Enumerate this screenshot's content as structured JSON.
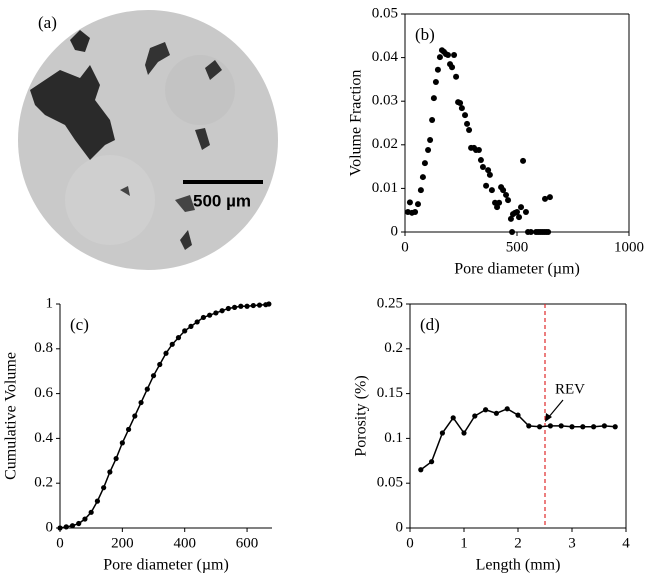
{
  "image": {
    "label": "(a)",
    "scale_bar": "500 µm"
  },
  "chart_data": [
    {
      "type": "scatter",
      "label": "(b)",
      "xlabel": "Pore diameter (µm)",
      "ylabel": "Volume Fraction",
      "color": "#000000",
      "box": true,
      "xlim": [
        0,
        1000
      ],
      "xticks": [
        0,
        500,
        1000
      ],
      "ylim": [
        0,
        0.05
      ],
      "yticks": [
        0,
        0.01,
        0.02,
        0.03,
        0.04,
        0.05
      ],
      "x": [
        13,
        22,
        31,
        45,
        58,
        71,
        80,
        89,
        103,
        112,
        121,
        129,
        138,
        147,
        156,
        165,
        174,
        183,
        192,
        201,
        210,
        219,
        228,
        237,
        246,
        254,
        268,
        277,
        286,
        295,
        308,
        317,
        330,
        339,
        348,
        362,
        371,
        379,
        388,
        402,
        411,
        420,
        429,
        438,
        451,
        460,
        473,
        478,
        482,
        491,
        500,
        509,
        518,
        527,
        540,
        549,
        562,
        585,
        594,
        603,
        612,
        621,
        625,
        630,
        639,
        647
      ],
      "values": [
        0.0046,
        0.0068,
        0.0044,
        0.0046,
        0.0064,
        0.0096,
        0.0126,
        0.0158,
        0.0188,
        0.0211,
        0.0257,
        0.0307,
        0.0344,
        0.0372,
        0.0401,
        0.0417,
        0.0413,
        0.0408,
        0.0406,
        0.0385,
        0.0378,
        0.0406,
        0.0356,
        0.0298,
        0.0296,
        0.0284,
        0.0268,
        0.0248,
        0.0234,
        0.0193,
        0.0193,
        0.0188,
        0.0188,
        0.0165,
        0.0149,
        0.0106,
        0.0142,
        0.0131,
        0.0096,
        0.0067,
        0.0057,
        0.0067,
        0.0103,
        0.0096,
        0.0085,
        0.0073,
        0.003,
        0,
        0.0041,
        0.0044,
        0.0046,
        0.0034,
        0.0057,
        0.0163,
        0.0046,
        0,
        0,
        0,
        0,
        0,
        0,
        0,
        0.0076,
        0,
        0,
        0.008
      ]
    },
    {
      "type": "line",
      "label": "(c)",
      "xlabel": "Pore diameter (µm)",
      "ylabel": "Cumulative Volume",
      "color": "#000000",
      "box": false,
      "xlim": [
        0,
        680
      ],
      "xticks": [
        0,
        200,
        400,
        600
      ],
      "ylim": [
        0,
        1
      ],
      "yticks": [
        0,
        0.2,
        0.4,
        0.6,
        0.8,
        1
      ],
      "x": [
        0,
        20,
        40,
        60,
        80,
        100,
        120,
        140,
        160,
        180,
        200,
        220,
        240,
        260,
        280,
        300,
        320,
        340,
        360,
        380,
        400,
        420,
        440,
        460,
        480,
        500,
        520,
        540,
        560,
        580,
        600,
        620,
        640,
        660,
        670
      ],
      "values": [
        0,
        0.005,
        0.01,
        0.02,
        0.04,
        0.07,
        0.12,
        0.18,
        0.25,
        0.31,
        0.38,
        0.44,
        0.5,
        0.56,
        0.62,
        0.68,
        0.73,
        0.78,
        0.82,
        0.85,
        0.88,
        0.9,
        0.92,
        0.94,
        0.95,
        0.96,
        0.97,
        0.98,
        0.985,
        0.99,
        0.99,
        0.993,
        0.995,
        0.997,
        1
      ]
    },
    {
      "type": "line",
      "label": "(d)",
      "xlabel": "Length (mm)",
      "ylabel": "Porosity (%)",
      "color": "#000000",
      "box": true,
      "xlim": [
        0,
        4
      ],
      "xticks": [
        0,
        1,
        2,
        3,
        4
      ],
      "ylim": [
        0,
        0.25
      ],
      "yticks": [
        0,
        0.05,
        0.1,
        0.15,
        0.2,
        0.25
      ],
      "x": [
        0.2,
        0.4,
        0.6,
        0.8,
        1.0,
        1.2,
        1.4,
        1.6,
        1.8,
        2.0,
        2.2,
        2.4,
        2.6,
        2.8,
        3.0,
        3.2,
        3.4,
        3.6,
        3.8
      ],
      "values": [
        0.065,
        0.074,
        0.106,
        0.123,
        0.106,
        0.125,
        0.132,
        0.128,
        0.133,
        0.126,
        0.114,
        0.113,
        0.114,
        0.114,
        0.113,
        0.113,
        0.113,
        0.114,
        0.113
      ],
      "reference_line": {
        "x": 2.5,
        "color": "#e0282a"
      },
      "annotation": "REV"
    }
  ]
}
